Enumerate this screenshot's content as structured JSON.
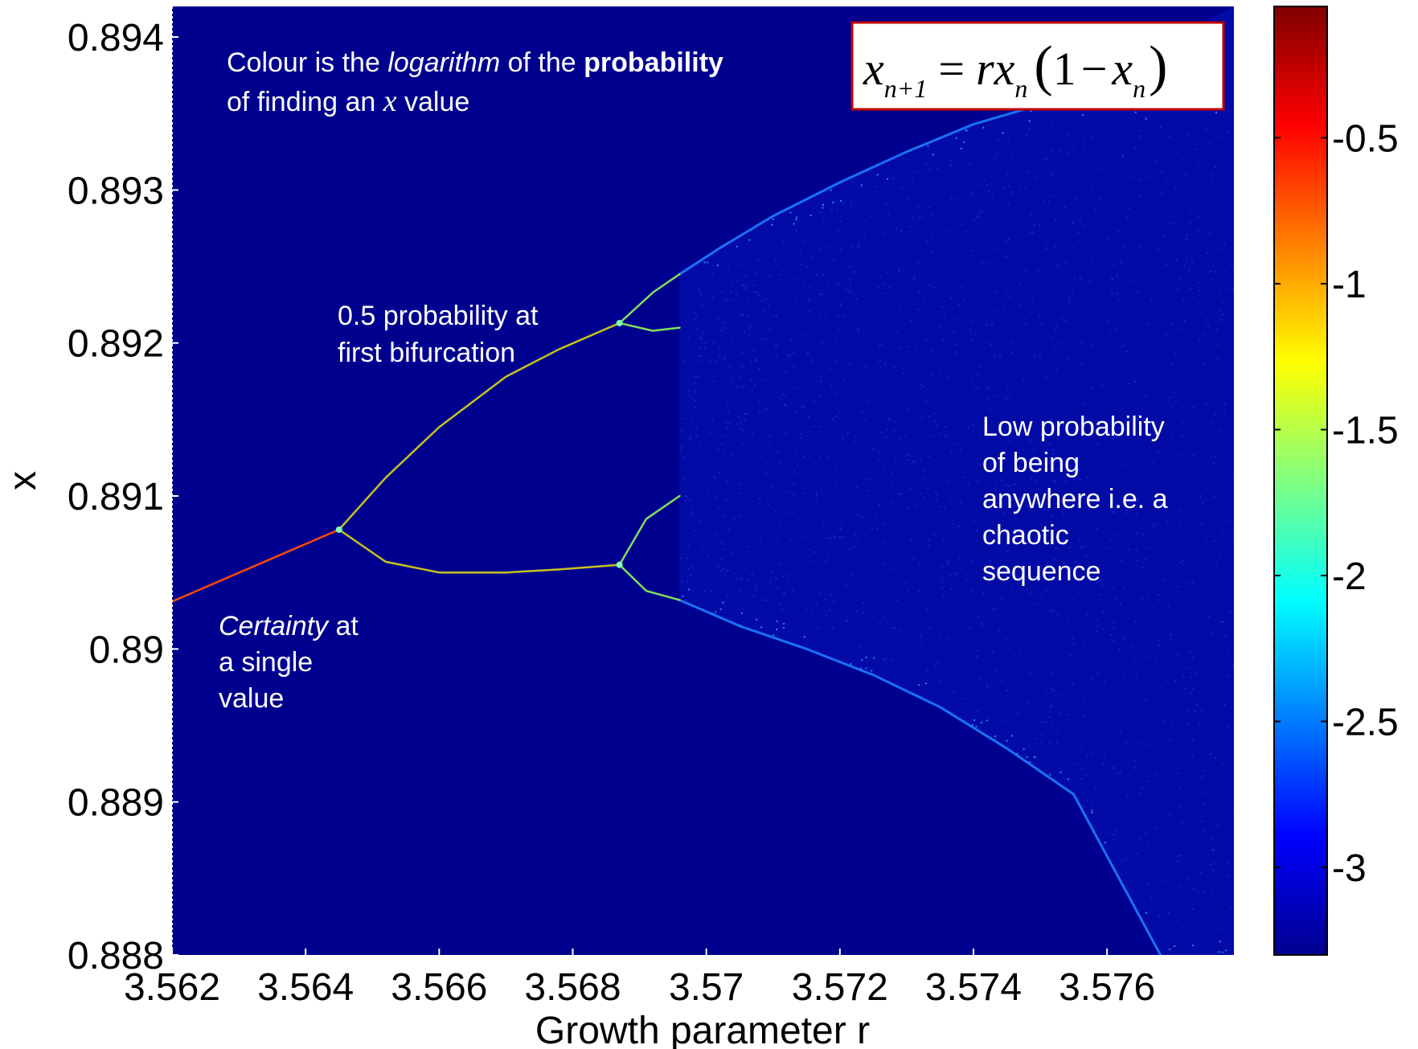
{
  "chart_data": {
    "type": "heatmap",
    "title": "",
    "xlabel": "Growth parameter r",
    "ylabel": "x",
    "xlim": [
      3.562,
      3.5779
    ],
    "ylim": [
      0.888,
      0.8942
    ],
    "x_ticks": [
      3.562,
      3.564,
      3.566,
      3.568,
      3.57,
      3.572,
      3.574,
      3.576
    ],
    "x_tick_labels": [
      "3.562",
      "3.564",
      "3.566",
      "3.568",
      "3.57",
      "3.572",
      "3.574",
      "3.576"
    ],
    "y_ticks": [
      0.888,
      0.889,
      0.89,
      0.891,
      0.892,
      0.893,
      0.894
    ],
    "y_tick_labels": [
      "0.888",
      "0.889",
      "0.89",
      "0.891",
      "0.892",
      "0.893",
      "0.894"
    ],
    "colorbar": {
      "colormap": "jet",
      "range": [
        -3.3,
        -0.05
      ],
      "ticks": [
        -0.5,
        -1,
        -1.5,
        -2,
        -2.5,
        -3
      ],
      "tick_labels": [
        "-0.5",
        "-1",
        "-1.5",
        "-2",
        "-2.5",
        "-3"
      ]
    },
    "background_color": "#00008f",
    "branches": {
      "period1": {
        "r": [
          3.562,
          3.5645
        ],
        "x": [
          0.89031,
          0.89078
        ]
      },
      "period2_upper": {
        "r": [
          3.5645,
          3.5652,
          3.566,
          3.567,
          3.5678,
          3.5687
        ],
        "x": [
          0.89078,
          0.89112,
          0.89145,
          0.89178,
          0.89196,
          0.89213
        ]
      },
      "period2_lower": {
        "r": [
          3.5645,
          3.5652,
          3.566,
          3.567,
          3.5678,
          3.5687
        ],
        "x": [
          0.89078,
          0.89057,
          0.8905,
          0.8905,
          0.89052,
          0.89055
        ]
      },
      "period4": [
        {
          "r": [
            3.5687,
            3.5692,
            3.5696
          ],
          "x": [
            0.89213,
            0.89233,
            0.89245
          ]
        },
        {
          "r": [
            3.5687,
            3.5692,
            3.5696
          ],
          "x": [
            0.89213,
            0.89208,
            0.8921
          ]
        },
        {
          "r": [
            3.5687,
            3.5691,
            3.5696
          ],
          "x": [
            0.89055,
            0.89085,
            0.891
          ]
        },
        {
          "r": [
            3.5687,
            3.5691,
            3.5696
          ],
          "x": [
            0.89055,
            0.89038,
            0.89032
          ]
        }
      ],
      "chaotic_envelope_upper": {
        "r": [
          3.5696,
          3.5702,
          3.571,
          3.572,
          3.573,
          3.574,
          3.5751
        ],
        "x": [
          0.89245,
          0.89262,
          0.89283,
          0.89305,
          0.89325,
          0.89343,
          0.89357
        ]
      },
      "chaotic_envelope_lower": {
        "r": [
          3.5696,
          3.5705,
          3.5715,
          3.5725,
          3.5735,
          3.5745,
          3.5755,
          3.5768
        ],
        "x": [
          0.89032,
          0.89015,
          0.89,
          0.88983,
          0.88962,
          0.88935,
          0.88905,
          0.888
        ]
      }
    },
    "annotations": [
      "Colour is the logarithm of the probability of finding an x value",
      "0.5 probability at first bifurcation",
      "Certainty at a single value",
      "Low probability of being anywhere i.e. a chaotic sequence"
    ]
  },
  "annotations": {
    "colour_line1_a": "Colour is the ",
    "colour_line1_b": "logarithm",
    "colour_line1_c": " of the ",
    "colour_line1_d": "probability",
    "colour_line2_a": "of finding an ",
    "colour_line2_b": "x",
    "colour_line2_c": " value",
    "bif_line1": "0.5 probability at",
    "bif_line2": "first bifurcation",
    "cert_line1_a": "Certainty",
    "cert_line1_b": " at",
    "cert_line2": "a single",
    "cert_line3": "value",
    "chaos_line1": "Low probability",
    "chaos_line2": "of being",
    "chaos_line3": "anywhere i.e. a",
    "chaos_line4": "chaotic",
    "chaos_line5": "sequence"
  },
  "equation": {
    "x": "x",
    "sub_n1": "n+1",
    "eq": "=",
    "r": "r",
    "sub_n": "n",
    "lparen": "(",
    "one": "1",
    "minus": "−",
    "rparen": ")"
  }
}
